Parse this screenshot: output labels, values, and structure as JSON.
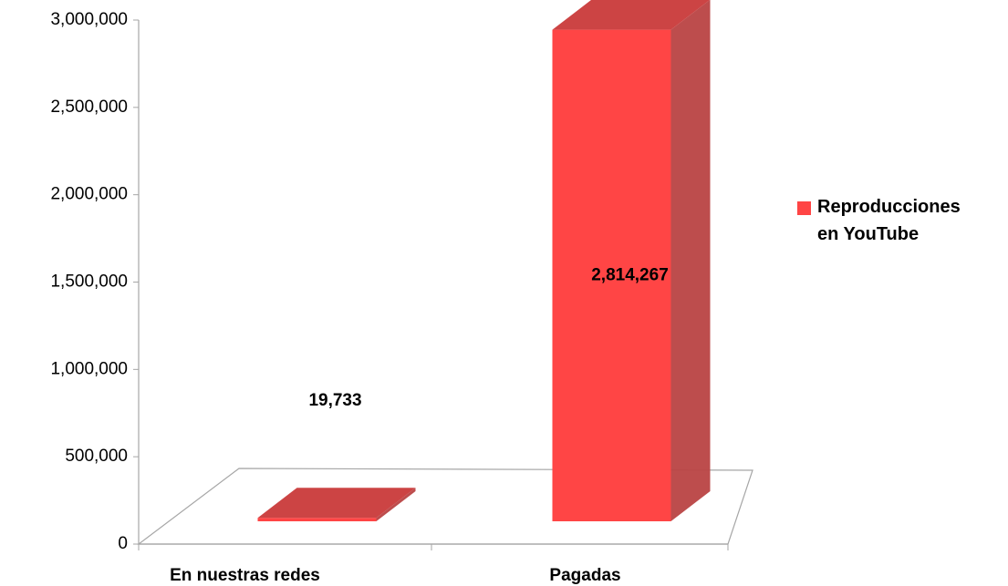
{
  "chart_data": {
    "type": "bar",
    "categories": [
      "En nuestras redes",
      "Pagadas"
    ],
    "series": [
      {
        "name": "Reproducciones en YouTube",
        "color": "#ff4545",
        "values": [
          19733,
          2814267
        ],
        "value_labels": [
          "19,733",
          "2,814,267"
        ]
      }
    ],
    "ylim": [
      0,
      3000000
    ],
    "yticks": [
      0,
      {
        "value": 500000,
        "label": "500,000"
      },
      {
        "value": 1000000,
        "label": "1,000,000"
      },
      {
        "value": 1500000,
        "label": "1,500,000"
      },
      {
        "value": 2000000,
        "label": "2,000,000"
      },
      {
        "value": 2500000,
        "label": "2,500,000"
      },
      {
        "value": 3000000,
        "label": "3,000,000"
      }
    ],
    "legend": "right"
  }
}
